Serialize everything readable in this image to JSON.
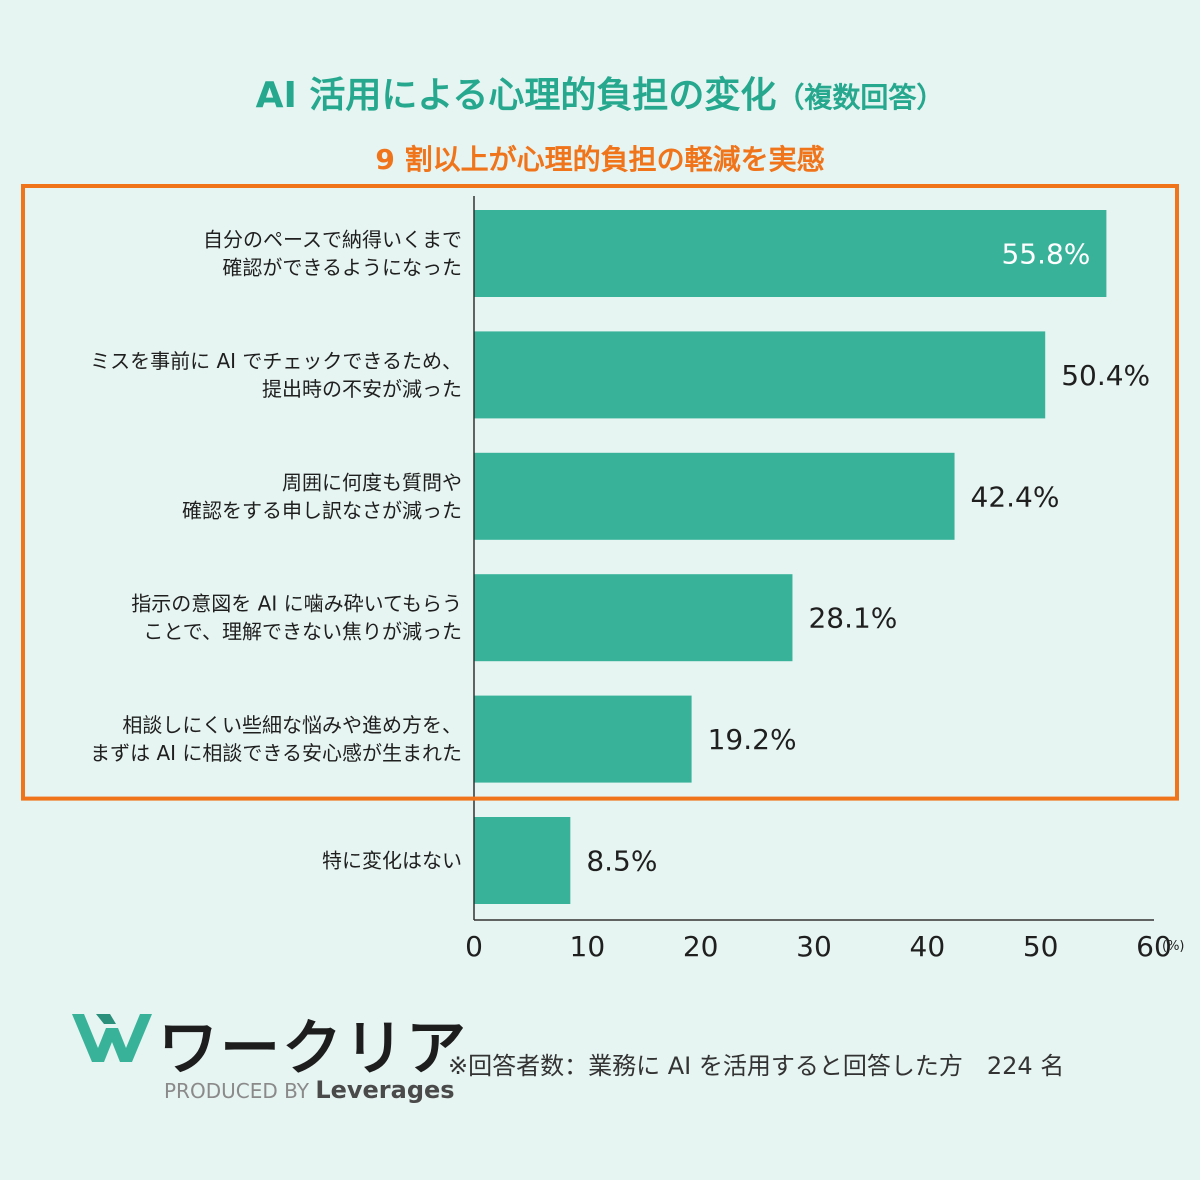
{
  "header": {
    "title": "AI 活用による心理的負担の変化",
    "title_note": "（複数回答）",
    "subtitle": "9 割以上が心理的負担の軽減を実感"
  },
  "colors": {
    "bar": "#38b39a",
    "title": "#25a88e",
    "highlight": "#f0741a",
    "background": "#e6f4f2"
  },
  "chart_data": {
    "type": "bar",
    "orientation": "horizontal",
    "categories": [
      [
        "自分のペースで納得いくまで",
        "確認ができるようになった"
      ],
      [
        "ミスを事前に AI でチェックできるため、",
        "提出時の不安が減った"
      ],
      [
        "周囲に何度も質問や",
        "確認をする申し訳なさが減った"
      ],
      [
        "指示の意図を AI に噛み砕いてもらう",
        "ことで、理解できない焦りが減った"
      ],
      [
        "相談しにくい些細な悩みや進め方を、",
        "まずは AI に相談できる安心感が生まれた"
      ],
      [
        "特に変化はない"
      ]
    ],
    "values": [
      55.8,
      50.4,
      42.4,
      28.1,
      19.2,
      8.5
    ],
    "value_labels": [
      "55.8%",
      "50.4%",
      "42.4%",
      "28.1%",
      "19.2%",
      "8.5%"
    ],
    "x_ticks": [
      "0",
      "10",
      "20",
      "30",
      "40",
      "50",
      "60"
    ],
    "x_unit": "(%)",
    "xlim": [
      0,
      60
    ],
    "grid": false,
    "highlight_count": 5
  },
  "footer": {
    "brand": "ワークリア",
    "produced_by": "PRODUCED BY",
    "company": "Leverages",
    "note": "※回答者数：業務に AI を活用すると回答した方　224 名"
  }
}
